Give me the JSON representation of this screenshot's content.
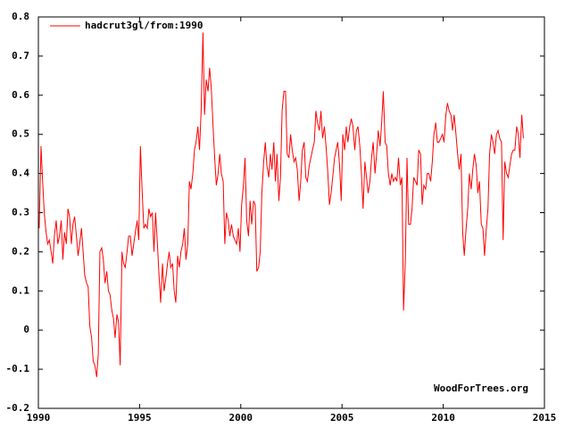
{
  "chart_data": {
    "type": "line",
    "x": [
      1990.04,
      1990.13,
      1990.21,
      1990.29,
      1990.38,
      1990.46,
      1990.54,
      1990.63,
      1990.71,
      1990.79,
      1990.88,
      1990.96,
      1991.04,
      1991.13,
      1991.21,
      1991.29,
      1991.38,
      1991.46,
      1991.54,
      1991.63,
      1991.71,
      1991.79,
      1991.88,
      1991.96,
      1992.04,
      1992.13,
      1992.21,
      1992.29,
      1992.38,
      1992.46,
      1992.54,
      1992.63,
      1992.71,
      1992.79,
      1992.88,
      1992.96,
      1993.04,
      1993.13,
      1993.21,
      1993.29,
      1993.38,
      1993.46,
      1993.54,
      1993.63,
      1993.71,
      1993.79,
      1993.88,
      1993.96,
      1994.04,
      1994.13,
      1994.21,
      1994.29,
      1994.38,
      1994.46,
      1994.54,
      1994.63,
      1994.71,
      1994.79,
      1994.88,
      1994.96,
      1995.04,
      1995.13,
      1995.21,
      1995.29,
      1995.38,
      1995.46,
      1995.54,
      1995.63,
      1995.71,
      1995.79,
      1995.88,
      1995.96,
      1996.04,
      1996.13,
      1996.21,
      1996.29,
      1996.38,
      1996.46,
      1996.54,
      1996.63,
      1996.71,
      1996.79,
      1996.88,
      1996.96,
      1997.04,
      1997.13,
      1997.21,
      1997.29,
      1997.38,
      1997.46,
      1997.54,
      1997.63,
      1997.71,
      1997.79,
      1997.88,
      1997.96,
      1998.04,
      1998.13,
      1998.21,
      1998.29,
      1998.38,
      1998.46,
      1998.54,
      1998.63,
      1998.71,
      1998.79,
      1998.88,
      1998.96,
      1999.04,
      1999.13,
      1999.21,
      1999.29,
      1999.38,
      1999.46,
      1999.54,
      1999.63,
      1999.71,
      1999.79,
      1999.88,
      1999.96,
      2000.04,
      2000.13,
      2000.21,
      2000.29,
      2000.38,
      2000.46,
      2000.54,
      2000.63,
      2000.71,
      2000.79,
      2000.88,
      2000.96,
      2001.04,
      2001.13,
      2001.21,
      2001.29,
      2001.38,
      2001.46,
      2001.54,
      2001.63,
      2001.71,
      2001.79,
      2001.88,
      2001.96,
      2002.04,
      2002.13,
      2002.21,
      2002.29,
      2002.38,
      2002.46,
      2002.54,
      2002.63,
      2002.71,
      2002.79,
      2002.88,
      2002.96,
      2003.04,
      2003.13,
      2003.21,
      2003.29,
      2003.38,
      2003.46,
      2003.54,
      2003.63,
      2003.71,
      2003.79,
      2003.88,
      2003.96,
      2004.04,
      2004.13,
      2004.21,
      2004.29,
      2004.38,
      2004.46,
      2004.54,
      2004.63,
      2004.71,
      2004.79,
      2004.88,
      2004.96,
      2005.04,
      2005.13,
      2005.21,
      2005.29,
      2005.38,
      2005.46,
      2005.54,
      2005.63,
      2005.71,
      2005.79,
      2005.88,
      2005.96,
      2006.04,
      2006.13,
      2006.21,
      2006.29,
      2006.38,
      2006.46,
      2006.54,
      2006.63,
      2006.71,
      2006.79,
      2006.88,
      2006.96,
      2007.04,
      2007.13,
      2007.21,
      2007.29,
      2007.38,
      2007.46,
      2007.54,
      2007.63,
      2007.71,
      2007.79,
      2007.88,
      2007.96,
      2008.04,
      2008.13,
      2008.21,
      2008.29,
      2008.38,
      2008.46,
      2008.54,
      2008.63,
      2008.71,
      2008.79,
      2008.88,
      2008.96,
      2009.04,
      2009.13,
      2009.21,
      2009.29,
      2009.38,
      2009.46,
      2009.54,
      2009.63,
      2009.71,
      2009.79,
      2009.88,
      2009.96,
      2010.04,
      2010.13,
      2010.21,
      2010.29,
      2010.38,
      2010.46,
      2010.54,
      2010.63,
      2010.71,
      2010.79,
      2010.88,
      2010.96,
      2011.04,
      2011.13,
      2011.21,
      2011.29,
      2011.38,
      2011.46,
      2011.54,
      2011.63,
      2011.71,
      2011.79,
      2011.88,
      2011.96,
      2012.04,
      2012.13,
      2012.21,
      2012.29,
      2012.38,
      2012.46,
      2012.54,
      2012.63,
      2012.71,
      2012.79,
      2012.88,
      2012.96,
      2013.04,
      2013.13,
      2013.21,
      2013.29,
      2013.38,
      2013.46,
      2013.54,
      2013.63,
      2013.71,
      2013.79,
      2013.88,
      2013.96
    ],
    "series": [
      {
        "name": "hadcrut3gl/from:1990",
        "color": "#ff0000",
        "values": [
          0.26,
          0.47,
          0.38,
          0.3,
          0.25,
          0.22,
          0.23,
          0.2,
          0.17,
          0.24,
          0.28,
          0.22,
          0.24,
          0.28,
          0.18,
          0.25,
          0.22,
          0.31,
          0.29,
          0.22,
          0.27,
          0.29,
          0.24,
          0.19,
          0.22,
          0.26,
          0.2,
          0.14,
          0.12,
          0.11,
          0.01,
          -0.02,
          -0.08,
          -0.09,
          -0.12,
          -0.06,
          0.2,
          0.21,
          0.18,
          0.12,
          0.15,
          0.1,
          0.09,
          0.05,
          0.03,
          -0.02,
          0.04,
          0.02,
          -0.09,
          0.2,
          0.17,
          0.16,
          0.2,
          0.24,
          0.24,
          0.19,
          0.22,
          0.25,
          0.28,
          0.23,
          0.47,
          0.35,
          0.26,
          0.27,
          0.26,
          0.31,
          0.29,
          0.3,
          0.2,
          0.3,
          0.22,
          0.14,
          0.07,
          0.17,
          0.1,
          0.13,
          0.17,
          0.2,
          0.16,
          0.17,
          0.1,
          0.07,
          0.19,
          0.16,
          0.2,
          0.22,
          0.26,
          0.18,
          0.22,
          0.38,
          0.36,
          0.4,
          0.46,
          0.48,
          0.52,
          0.46,
          0.56,
          0.76,
          0.55,
          0.64,
          0.61,
          0.67,
          0.62,
          0.52,
          0.44,
          0.37,
          0.4,
          0.45,
          0.4,
          0.38,
          0.22,
          0.3,
          0.28,
          0.24,
          0.27,
          0.24,
          0.23,
          0.22,
          0.26,
          0.2,
          0.32,
          0.37,
          0.44,
          0.28,
          0.24,
          0.33,
          0.27,
          0.33,
          0.32,
          0.15,
          0.16,
          0.2,
          0.35,
          0.43,
          0.48,
          0.42,
          0.39,
          0.45,
          0.41,
          0.48,
          0.38,
          0.45,
          0.33,
          0.39,
          0.56,
          0.61,
          0.61,
          0.45,
          0.44,
          0.5,
          0.46,
          0.43,
          0.44,
          0.41,
          0.33,
          0.38,
          0.46,
          0.48,
          0.39,
          0.38,
          0.42,
          0.44,
          0.46,
          0.48,
          0.56,
          0.53,
          0.51,
          0.56,
          0.49,
          0.52,
          0.47,
          0.41,
          0.32,
          0.35,
          0.39,
          0.44,
          0.46,
          0.48,
          0.42,
          0.33,
          0.5,
          0.46,
          0.52,
          0.48,
          0.52,
          0.54,
          0.52,
          0.46,
          0.51,
          0.52,
          0.47,
          0.4,
          0.31,
          0.43,
          0.39,
          0.35,
          0.38,
          0.44,
          0.48,
          0.4,
          0.45,
          0.51,
          0.47,
          0.53,
          0.61,
          0.48,
          0.47,
          0.4,
          0.37,
          0.4,
          0.38,
          0.39,
          0.38,
          0.44,
          0.37,
          0.39,
          0.05,
          0.18,
          0.44,
          0.27,
          0.27,
          0.31,
          0.39,
          0.38,
          0.37,
          0.46,
          0.45,
          0.32,
          0.37,
          0.36,
          0.4,
          0.4,
          0.38,
          0.43,
          0.5,
          0.53,
          0.48,
          0.48,
          0.49,
          0.5,
          0.48,
          0.55,
          0.58,
          0.56,
          0.55,
          0.51,
          0.55,
          0.5,
          0.45,
          0.41,
          0.45,
          0.25,
          0.19,
          0.26,
          0.31,
          0.4,
          0.36,
          0.41,
          0.45,
          0.42,
          0.35,
          0.38,
          0.27,
          0.26,
          0.19,
          0.26,
          0.31,
          0.45,
          0.5,
          0.48,
          0.45,
          0.5,
          0.51,
          0.49,
          0.48,
          0.23,
          0.43,
          0.4,
          0.39,
          0.42,
          0.45,
          0.46,
          0.46,
          0.52,
          0.5,
          0.44,
          0.55,
          0.49
        ]
      }
    ],
    "xlim": [
      1990,
      2015
    ],
    "xticks": [
      1990,
      1995,
      2000,
      2005,
      2010,
      2015
    ],
    "ylim": [
      -0.2,
      0.8
    ],
    "yticks": [
      -0.2,
      -0.1,
      0,
      0.1,
      0.2,
      0.3,
      0.4,
      0.5,
      0.6,
      0.7,
      0.8
    ],
    "legend": "upper left",
    "annotation": "WoodForTrees.org"
  }
}
